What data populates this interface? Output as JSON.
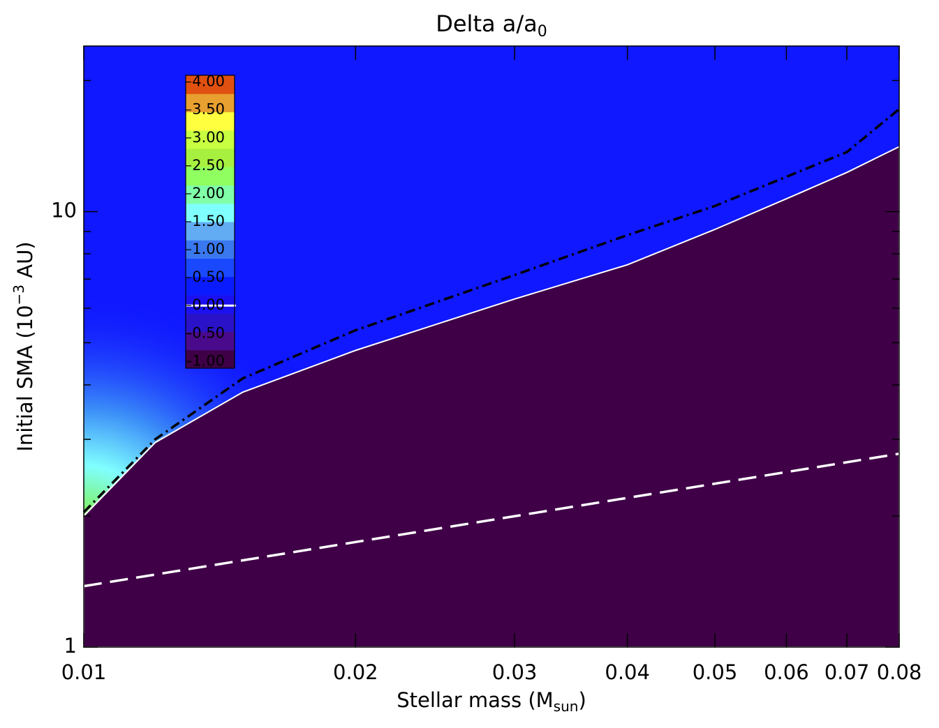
{
  "chart_data": {
    "type": "contour",
    "title": "Delta a/a",
    "title_sub": "0",
    "xlabel": "Stellar mass (M",
    "xlabel_sub": "sun",
    "xlabel_end": ")",
    "ylabel": "Initial SMA (10",
    "ylabel_sup": "−3",
    "ylabel_end": " AU)",
    "xscale": "log",
    "yscale": "log",
    "xlim": [
      0.01,
      0.08
    ],
    "ylim": [
      1,
      24
    ],
    "xticks": [
      0.01,
      0.02,
      0.03,
      0.04,
      0.05,
      0.06,
      0.07,
      0.08
    ],
    "yticks": [
      1,
      10
    ],
    "yminor_ticks": [
      2,
      3,
      4,
      5,
      6,
      7,
      8,
      9,
      20
    ],
    "lines": [
      {
        "style": "fill",
        "color": "#3f0047",
        "x": [
          0.01,
          0.012,
          0.015,
          0.02,
          0.03,
          0.04,
          0.05,
          0.06,
          0.07,
          0.08
        ],
        "values": [
          2.0,
          2.95,
          3.85,
          4.8,
          6.3,
          7.55,
          9.1,
          10.7,
          12.3,
          14.1
        ]
      },
      {
        "style": "dashdot",
        "color": "#000000",
        "x": [
          0.01,
          0.012,
          0.015,
          0.02,
          0.03,
          0.04,
          0.05,
          0.07,
          0.08
        ],
        "values": [
          2.04,
          3.0,
          4.14,
          5.34,
          7.15,
          8.83,
          10.3,
          13.7,
          17.2
        ]
      },
      {
        "style": "dashed",
        "color": "#ffffff",
        "x": [
          0.01,
          0.08
        ],
        "values": [
          1.38,
          2.78
        ]
      }
    ],
    "colorbar": {
      "lim": [
        -1.12,
        4.12
      ],
      "colors": [
        "#3f0047",
        "#4a0a8c",
        "#2a12c8",
        "#1a10f0",
        "#0a1cff",
        "#1a48ff",
        "#3a78f0",
        "#62acf4",
        "#80ffff",
        "#80ffa8",
        "#90ff60",
        "#a8f040",
        "#c8ff40",
        "#ffff40",
        "#e8a030",
        "#e05010"
      ],
      "zero_line": 0,
      "ticks": [
        {
          "value": 4,
          "label": "4.00"
        },
        {
          "value": 3.5,
          "label": "3.50"
        },
        {
          "value": 3,
          "label": "3.00"
        },
        {
          "value": 2.5,
          "label": "2.50"
        },
        {
          "value": 2,
          "label": "2.00"
        },
        {
          "value": 1.5,
          "label": "1.50"
        },
        {
          "value": 1,
          "label": "1.00"
        },
        {
          "value": 0.5,
          "label": "0.50"
        },
        {
          "value": 0,
          "label": "0.00"
        },
        {
          "value": -0.5,
          "label": "-0.50"
        },
        {
          "value": -1,
          "label": "-1.00"
        }
      ]
    }
  }
}
